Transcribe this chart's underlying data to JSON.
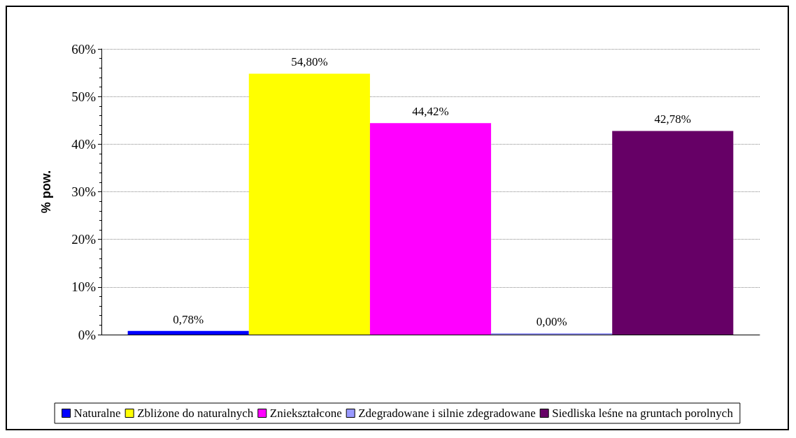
{
  "chart_data": {
    "type": "bar",
    "ylabel": "% pow.",
    "categories": [
      null
    ],
    "series": [
      {
        "name": "Naturalne",
        "color": "#0000ff",
        "values": [
          0.78
        ],
        "value_labels": [
          "0,78%"
        ]
      },
      {
        "name": "Zbliżone do naturalnych",
        "color": "#ffff00",
        "values": [
          54.8
        ],
        "value_labels": [
          "54,80%"
        ]
      },
      {
        "name": "Zniekształcone",
        "color": "#ff00ff",
        "values": [
          44.42
        ],
        "value_labels": [
          "44,42%"
        ]
      },
      {
        "name": "Zdegradowane i silnie zdegradowane",
        "color": "#9999ff",
        "values": [
          0
        ],
        "value_labels": [
          "0,00%"
        ]
      },
      {
        "name": "Siedliska leśne na gruntach porolnych",
        "color": "#660066",
        "values": [
          42.78
        ],
        "value_labels": [
          "42,78%"
        ]
      }
    ],
    "ylim": [
      0,
      60
    ],
    "yticks": [
      {
        "value": 0,
        "label": "0%"
      },
      {
        "value": 10,
        "label": "10%"
      },
      {
        "value": 20,
        "label": "20%"
      },
      {
        "value": 30,
        "label": "30%"
      },
      {
        "value": 40,
        "label": "40%"
      },
      {
        "value": 50,
        "label": "50%"
      },
      {
        "value": 60,
        "label": "60%"
      }
    ],
    "grid": "y",
    "legend": "bottom"
  }
}
